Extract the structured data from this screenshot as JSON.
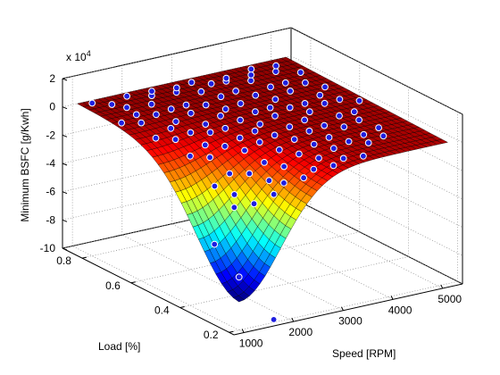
{
  "chart_data": {
    "type": "surface",
    "zlabel": "Minimum BSFC [g/Kwh]",
    "xlabel": "Speed [RPM]",
    "ylabel": "Load [%]",
    "exponent_label": "x 10",
    "exponent_power": "4",
    "x_ticks": [
      1000,
      2000,
      3000,
      4000,
      5000
    ],
    "y_ticks": [
      0.2,
      0.4,
      0.6,
      0.8
    ],
    "z_ticks": [
      -10,
      -8,
      -6,
      -4,
      -2,
      0,
      2
    ],
    "x_range": [
      800,
      5400
    ],
    "y_range": [
      0.18,
      0.88
    ],
    "z_range": [
      -10,
      2
    ],
    "grid": true,
    "surface": {
      "description_values": "fitted surface near 0 over most of domain with a deep trough toward low speed / low load",
      "plateau_value": 0,
      "min_value": -8,
      "min_at": {
        "speed": 1000,
        "load": 0.2
      }
    },
    "scatter_series": {
      "marker_color": "#1f1fe0",
      "points": [
        {
          "x": 1200,
          "y": 0.84,
          "z": 0.3
        },
        {
          "x": 1400,
          "y": 0.8,
          "z": 0.4
        },
        {
          "x": 1600,
          "y": 0.78,
          "z": 0.2
        },
        {
          "x": 1800,
          "y": 0.82,
          "z": 0.5
        },
        {
          "x": 2000,
          "y": 0.76,
          "z": 0.3
        },
        {
          "x": 2200,
          "y": 0.8,
          "z": 0.4
        },
        {
          "x": 2400,
          "y": 0.84,
          "z": 0.2
        },
        {
          "x": 2600,
          "y": 0.78,
          "z": 0.5
        },
        {
          "x": 2800,
          "y": 0.82,
          "z": 0.3
        },
        {
          "x": 3000,
          "y": 0.76,
          "z": 0.4
        },
        {
          "x": 3200,
          "y": 0.84,
          "z": 0.2
        },
        {
          "x": 3400,
          "y": 0.8,
          "z": 0.3
        },
        {
          "x": 3600,
          "y": 0.78,
          "z": 0.5
        },
        {
          "x": 3800,
          "y": 0.82,
          "z": 0.2
        },
        {
          "x": 4000,
          "y": 0.76,
          "z": 0.4
        },
        {
          "x": 4200,
          "y": 0.8,
          "z": 0.3
        },
        {
          "x": 4400,
          "y": 0.84,
          "z": 0.2
        },
        {
          "x": 4600,
          "y": 0.78,
          "z": 0.4
        },
        {
          "x": 4800,
          "y": 0.82,
          "z": 0.3
        },
        {
          "x": 5000,
          "y": 0.76,
          "z": 0.2
        },
        {
          "x": 1100,
          "y": 0.7,
          "z": 0.2
        },
        {
          "x": 1300,
          "y": 0.66,
          "z": 0.4
        },
        {
          "x": 1500,
          "y": 0.72,
          "z": 0.3
        },
        {
          "x": 1700,
          "y": 0.68,
          "z": 0.5
        },
        {
          "x": 1900,
          "y": 0.64,
          "z": 0.2
        },
        {
          "x": 2100,
          "y": 0.7,
          "z": 0.4
        },
        {
          "x": 2300,
          "y": 0.66,
          "z": 0.3
        },
        {
          "x": 2500,
          "y": 0.72,
          "z": 0.2
        },
        {
          "x": 2700,
          "y": 0.68,
          "z": 0.4
        },
        {
          "x": 2900,
          "y": 0.64,
          "z": 0.3
        },
        {
          "x": 3100,
          "y": 0.7,
          "z": 0.5
        },
        {
          "x": 3300,
          "y": 0.66,
          "z": 0.2
        },
        {
          "x": 3500,
          "y": 0.72,
          "z": 0.4
        },
        {
          "x": 3700,
          "y": 0.68,
          "z": 0.3
        },
        {
          "x": 3900,
          "y": 0.64,
          "z": 0.2
        },
        {
          "x": 4100,
          "y": 0.7,
          "z": 0.4
        },
        {
          "x": 4300,
          "y": 0.66,
          "z": 0.3
        },
        {
          "x": 4500,
          "y": 0.72,
          "z": 0.2
        },
        {
          "x": 4700,
          "y": 0.68,
          "z": 0.4
        },
        {
          "x": 4900,
          "y": 0.64,
          "z": 0.3
        },
        {
          "x": 1200,
          "y": 0.58,
          "z": 0.1
        },
        {
          "x": 1400,
          "y": 0.54,
          "z": 0.2
        },
        {
          "x": 1600,
          "y": 0.6,
          "z": 0.3
        },
        {
          "x": 1800,
          "y": 0.56,
          "z": 0.2
        },
        {
          "x": 2000,
          "y": 0.52,
          "z": 0.4
        },
        {
          "x": 2200,
          "y": 0.58,
          "z": 0.3
        },
        {
          "x": 2400,
          "y": 0.54,
          "z": 0.2
        },
        {
          "x": 2600,
          "y": 0.6,
          "z": 0.4
        },
        {
          "x": 2800,
          "y": 0.56,
          "z": 0.3
        },
        {
          "x": 3000,
          "y": 0.52,
          "z": 0.2
        },
        {
          "x": 3200,
          "y": 0.58,
          "z": 0.4
        },
        {
          "x": 3400,
          "y": 0.54,
          "z": 0.3
        },
        {
          "x": 3600,
          "y": 0.6,
          "z": 0.2
        },
        {
          "x": 3800,
          "y": 0.56,
          "z": 0.4
        },
        {
          "x": 4000,
          "y": 0.52,
          "z": 0.3
        },
        {
          "x": 4200,
          "y": 0.58,
          "z": 0.2
        },
        {
          "x": 4400,
          "y": 0.54,
          "z": 0.4
        },
        {
          "x": 4600,
          "y": 0.6,
          "z": 0.3
        },
        {
          "x": 4800,
          "y": 0.56,
          "z": 0.2
        },
        {
          "x": 5000,
          "y": 0.52,
          "z": 0.3
        },
        {
          "x": 1300,
          "y": 0.46,
          "z": -0.2
        },
        {
          "x": 1500,
          "y": 0.42,
          "z": -0.1
        },
        {
          "x": 1700,
          "y": 0.48,
          "z": 0.1
        },
        {
          "x": 1900,
          "y": 0.44,
          "z": 0.2
        },
        {
          "x": 2100,
          "y": 0.4,
          "z": 0.1
        },
        {
          "x": 2300,
          "y": 0.46,
          "z": 0.3
        },
        {
          "x": 2500,
          "y": 0.42,
          "z": 0.2
        },
        {
          "x": 2700,
          "y": 0.48,
          "z": 0.3
        },
        {
          "x": 2900,
          "y": 0.44,
          "z": 0.2
        },
        {
          "x": 3100,
          "y": 0.4,
          "z": 0.1
        },
        {
          "x": 3300,
          "y": 0.46,
          "z": 0.3
        },
        {
          "x": 3500,
          "y": 0.42,
          "z": 0.2
        },
        {
          "x": 3700,
          "y": 0.48,
          "z": 0.3
        },
        {
          "x": 3900,
          "y": 0.44,
          "z": 0.1
        },
        {
          "x": 4100,
          "y": 0.4,
          "z": 0.2
        },
        {
          "x": 4300,
          "y": 0.46,
          "z": 0.3
        },
        {
          "x": 4500,
          "y": 0.42,
          "z": 0.2
        },
        {
          "x": 4700,
          "y": 0.48,
          "z": 0.1
        },
        {
          "x": 1200,
          "y": 0.34,
          "z": -1.2
        },
        {
          "x": 1400,
          "y": 0.3,
          "z": -1.6
        },
        {
          "x": 1600,
          "y": 0.36,
          "z": -0.8
        },
        {
          "x": 1800,
          "y": 0.32,
          "z": -0.6
        },
        {
          "x": 2000,
          "y": 0.28,
          "z": -0.9
        },
        {
          "x": 2200,
          "y": 0.34,
          "z": -0.3
        },
        {
          "x": 2400,
          "y": 0.3,
          "z": -0.4
        },
        {
          "x": 2600,
          "y": 0.36,
          "z": 0.1
        },
        {
          "x": 2800,
          "y": 0.32,
          "z": 0.0
        },
        {
          "x": 3000,
          "y": 0.28,
          "z": -0.1
        },
        {
          "x": 3200,
          "y": 0.34,
          "z": 0.2
        },
        {
          "x": 3400,
          "y": 0.3,
          "z": 0.1
        },
        {
          "x": 3600,
          "y": 0.36,
          "z": 0.2
        },
        {
          "x": 3800,
          "y": 0.32,
          "z": 0.1
        },
        {
          "x": 4000,
          "y": 0.28,
          "z": 0.2
        },
        {
          "x": 4200,
          "y": 0.34,
          "z": 0.1
        },
        {
          "x": 4400,
          "y": 0.3,
          "z": 0.2
        },
        {
          "x": 4600,
          "y": 0.36,
          "z": 0.1
        },
        {
          "x": 1500,
          "y": 0.24,
          "z": -1.8
        },
        {
          "x": 1800,
          "y": 0.22,
          "z": -1.2
        },
        {
          "x": 2100,
          "y": 0.24,
          "z": -0.8
        },
        {
          "x": 2400,
          "y": 0.22,
          "z": -0.5
        },
        {
          "x": 2700,
          "y": 0.24,
          "z": -0.3
        },
        {
          "x": 3000,
          "y": 0.22,
          "z": -0.1
        },
        {
          "x": 3300,
          "y": 0.24,
          "z": 0.0
        },
        {
          "x": 3600,
          "y": 0.22,
          "z": 0.1
        },
        {
          "x": 1000,
          "y": 0.3,
          "z": -4.8
        },
        {
          "x": 1100,
          "y": 0.22,
          "z": -6.5
        },
        {
          "x": 1200,
          "y": 0.26,
          "z": -2.0
        },
        {
          "x": 1700,
          "y": 0.2,
          "z": -9.8
        }
      ]
    }
  }
}
